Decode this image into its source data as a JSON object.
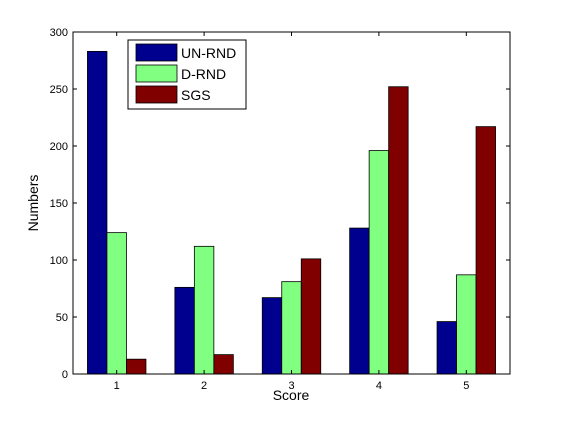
{
  "chart_data": {
    "type": "bar",
    "categories": [
      "1",
      "2",
      "3",
      "4",
      "5"
    ],
    "series": [
      {
        "name": "UN-RND",
        "color": "#00008f",
        "values": [
          283,
          76,
          67,
          128,
          46
        ]
      },
      {
        "name": "D-RND",
        "color": "#80ff80",
        "values": [
          124,
          112,
          81,
          196,
          87
        ]
      },
      {
        "name": "SGS",
        "color": "#800000",
        "values": [
          13,
          17,
          101,
          252,
          217
        ]
      }
    ],
    "xlabel": "Score",
    "ylabel": "Numbers",
    "ylim": [
      0,
      300
    ],
    "yticks": [
      0,
      50,
      100,
      150,
      200,
      250,
      300
    ],
    "legend_position": "top-left",
    "grid": false
  }
}
